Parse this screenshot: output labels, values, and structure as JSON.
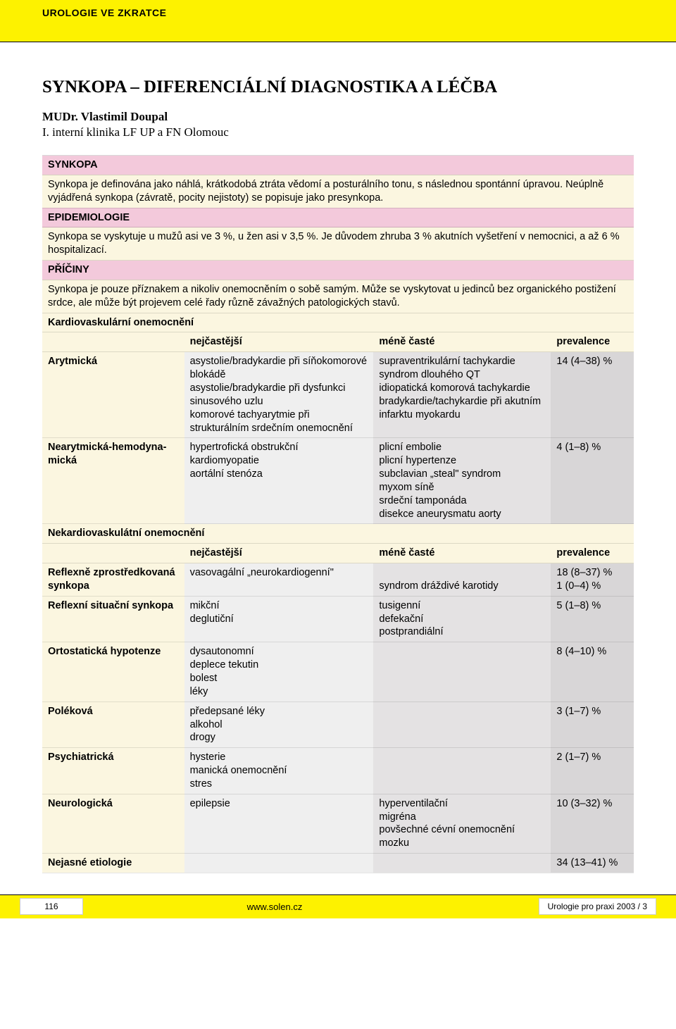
{
  "colors": {
    "band": "#fdf200",
    "pink": "#f3c9db",
    "cream": "#fbf6e0",
    "grey1": "#efefef",
    "grey2": "#e4e2e3",
    "grey3": "#d8d6d7"
  },
  "header": {
    "section_label": "UROLOGIE VE ZKRATCE"
  },
  "title": "SYNKOPA – DIFERENCIÁLNÍ DIAGNOSTIKA A LÉČBA",
  "author": "MUDr. Vlastimil Doupal",
  "affiliation": "I. interní klinika LF UP a FN Olomouc",
  "sections": {
    "synkopa_h": "SYNKOPA",
    "synkopa_b": "Synkopa je definována jako náhlá, krátkodobá ztráta vědomí a posturálního tonu, s následnou spontánní úpravou. Neúplně vyjádřená synkopa (závratě, pocity nejistoty) se popisuje jako presynkopa.",
    "epi_h": "EPIDEMIOLOGIE",
    "epi_b": "Synkopa se vyskytuje u mužů asi ve 3 %, u žen asi v 3,5 %. Je důvodem zhruba 3 % akutních vyšetření v nemocnici, a až 6 % hospitalizací.",
    "pri_h": "PŘÍČINY",
    "pri_b": "Synkopa je pouze příznakem a nikoliv onemocněním o sobě samým. Může se vyskytovat u jedinců bez organického postižení srdce, ale může být projevem celé řady různě závažných patologických stavů."
  },
  "table": {
    "col_widths": [
      "24%",
      "32%",
      "30%",
      "14%"
    ],
    "kardio_h": "Kardiovaskulární onemocnění",
    "nekardio_h": "Nekardiovaskulátní onemocnění",
    "headers": {
      "c1": "nejčastější",
      "c2": "méně časté",
      "c3": "prevalence"
    },
    "kardio_rows": [
      {
        "c0": "Arytmická",
        "c1": "asystolie/bradykardie při síňokomorové blokádě\nasystolie/bradykardie při dysfunkci sinusového uzlu\nkomorové tachyarytmie při strukturálním srdečním onemocnění",
        "c2": "supraventrikulární tachykardie\nsyndrom dlouhého QT\nidiopatická komorová tachykardie\nbradykardie/tachykardie při akutním infarktu myokardu",
        "c3": "14 (4–38) %"
      },
      {
        "c0": "Nearytmická-hemodyna­mická",
        "c1": "hypertrofická obstrukční kardiomyopatie\naortální stenóza",
        "c2": "plicní embolie\nplicní hypertenze\nsubclavian „steal\" syndrom\nmyxom síně\nsrdeční tamponáda\ndisekce aneurysmatu aorty",
        "c3": "4 (1–8) %"
      }
    ],
    "nekardio_rows": [
      {
        "c0": "Reflexně zprostředkovaná synkopa",
        "c1": "vasovagální „neurokardiogenní\"",
        "c2": "\nsyndrom dráždivé karotidy",
        "c3": "18 (8–37) %\n1 (0–4) %"
      },
      {
        "c0": "Reflexní situační synkopa",
        "c1": "mikční\ndeglutiční",
        "c2": "tusigenní\ndefekační\npostprandiální",
        "c3": "5 (1–8) %"
      },
      {
        "c0": "Ortostatická hypotenze",
        "c1": "dysautonomní\ndeplece tekutin\nbolest\nléky",
        "c2": "",
        "c3": "8 (4–10) %"
      },
      {
        "c0": "Poléková",
        "c1": "předepsané léky\nalkohol\ndrogy",
        "c2": "",
        "c3": "3 (1–7) %"
      },
      {
        "c0": "Psychiatrická",
        "c1": "hysterie\nmanická onemocnění\nstres",
        "c2": "",
        "c3": "2 (1–7) %"
      },
      {
        "c0": "Neurologická",
        "c1": "epilepsie",
        "c2": "hyperventilační\nmigréna\npovšechné cévní onemocnění mozku",
        "c3": "10 (3–32) %"
      },
      {
        "c0": "Nejasné etiologie",
        "c1": "",
        "c2": "",
        "c3": "34 (13–41) %"
      }
    ]
  },
  "footer": {
    "page": "116",
    "url": "www.solen.cz",
    "journal": "Urologie pro praxi 2003 / 3"
  }
}
